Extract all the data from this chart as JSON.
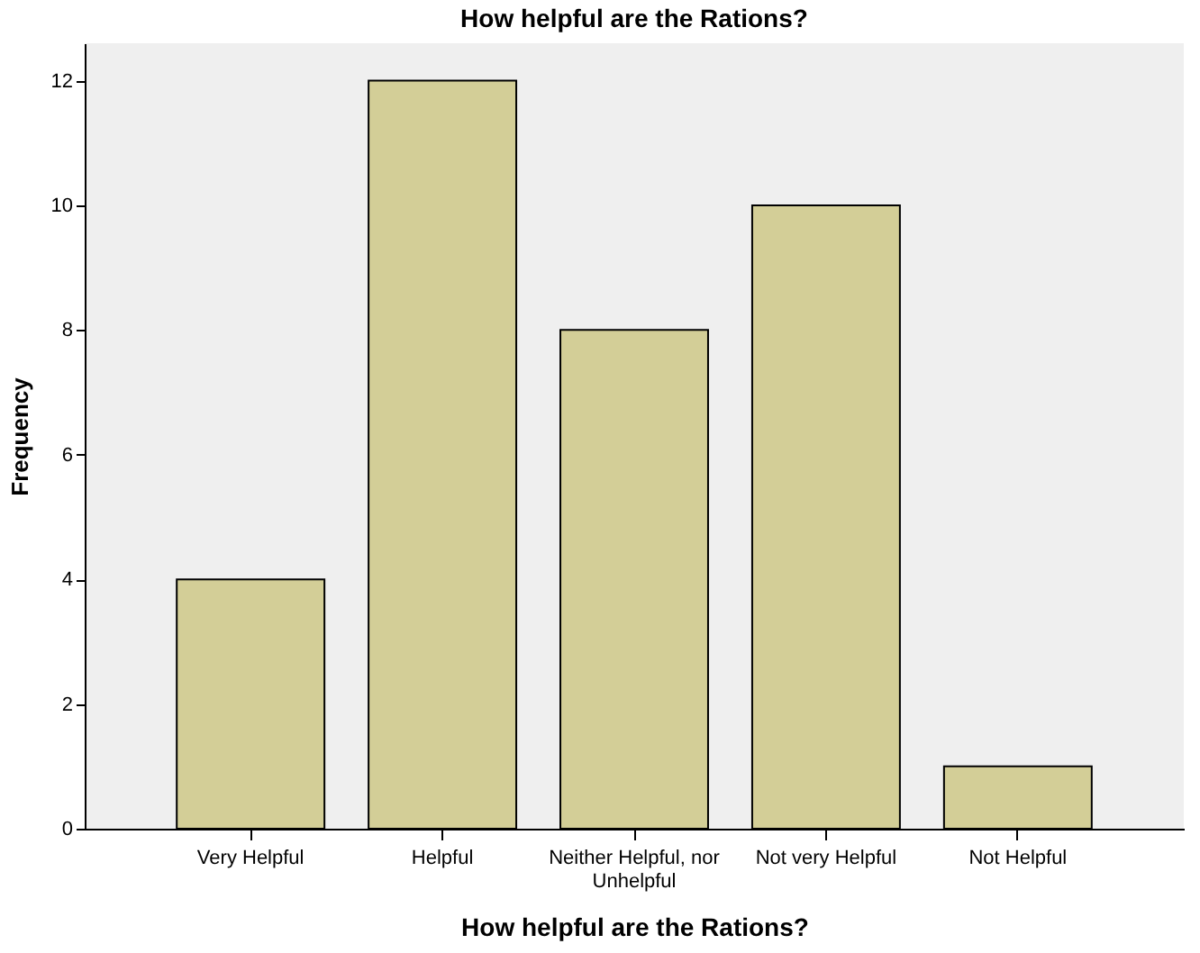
{
  "chart_data": {
    "type": "bar",
    "title": "How helpful are the Rations?",
    "xlabel": "How helpful are the Rations?",
    "ylabel": "Frequency",
    "categories": [
      "Very Helpful",
      "Helpful",
      "Neither Helpful, nor Unhelpful",
      "Not very Helpful",
      "Not Helpful"
    ],
    "values": [
      4,
      12,
      8,
      10,
      1
    ],
    "color": "#d3ce97",
    "ylim": [
      0,
      12.6
    ],
    "yticks": [
      0,
      2,
      4,
      6,
      8,
      10,
      12
    ],
    "grid": false
  }
}
